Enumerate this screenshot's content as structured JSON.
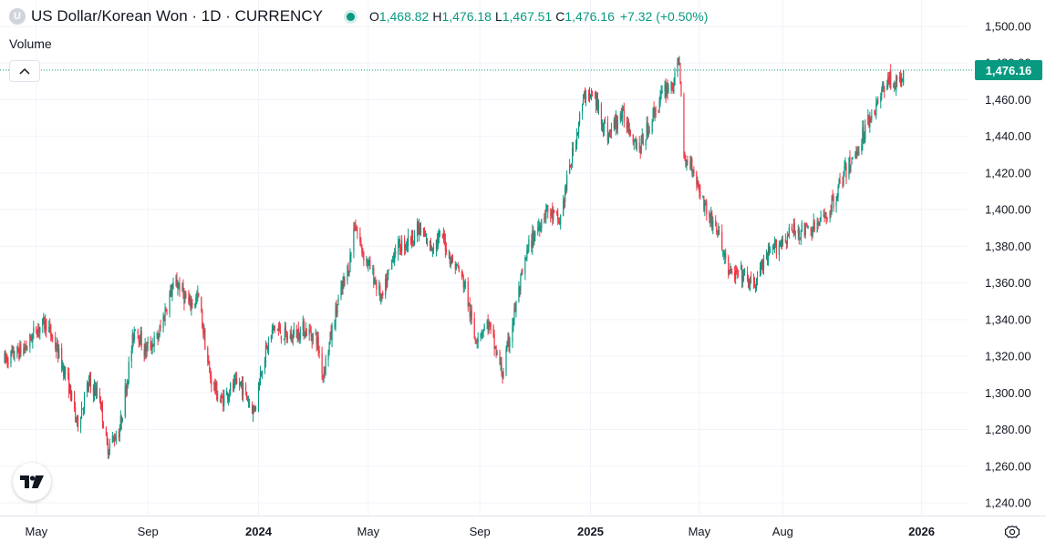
{
  "header": {
    "symbol_badge": "U",
    "title": "US Dollar/Korean Won · 1D · CURRENCY",
    "open_key": "O",
    "open": "1,468.82",
    "high_key": "H",
    "high": "1,476.18",
    "low_key": "L",
    "low": "1,467.51",
    "close_key": "C",
    "close": "1,476.16",
    "change": "+7.32 (+0.50%)"
  },
  "volume_label": "Volume",
  "icons": [
    "collapse-chevron-icon",
    "tradingview-logo-icon",
    "settings-gear-icon"
  ],
  "colors": {
    "up": "#089981",
    "down": "#f23645",
    "grid": "#f0f3fa",
    "axis_text": "#131722",
    "price_tag": "#089981"
  },
  "chart_data": {
    "type": "candlestick",
    "y_axis": {
      "position": "right",
      "min": 1240,
      "max": 1500,
      "step": 20,
      "tick_labels": [
        "1,500.00",
        "1,480.00",
        "1,460.00",
        "1,440.00",
        "1,420.00",
        "1,400.00",
        "1,380.00",
        "1,360.00",
        "1,340.00",
        "1,320.00",
        "1,300.00",
        "1,280.00",
        "1,260.00",
        "1,240.00"
      ]
    },
    "x_axis": {
      "start": "2023-03-27",
      "end": "2025-12-15",
      "ticks": [
        {
          "label": "May",
          "date": "2023-05-01",
          "bold": false
        },
        {
          "label": "Sep",
          "date": "2023-09-01",
          "bold": false
        },
        {
          "label": "2024",
          "date": "2024-01-01",
          "bold": true
        },
        {
          "label": "May",
          "date": "2024-05-01",
          "bold": false
        },
        {
          "label": "Sep",
          "date": "2024-09-01",
          "bold": false
        },
        {
          "label": "2025",
          "date": "2025-01-01",
          "bold": true
        },
        {
          "label": "May",
          "date": "2025-05-01",
          "bold": false
        },
        {
          "label": "Aug",
          "date": "2025-08-01",
          "bold": false
        },
        {
          "label": "2026",
          "date": "2026-01-01",
          "bold": true
        }
      ]
    },
    "last_price": 1476.16,
    "last_price_label": "1,476.16",
    "grid": true,
    "anchors": [
      [
        "2023-03-27",
        1318
      ],
      [
        "2023-04-20",
        1325
      ],
      [
        "2023-05-01",
        1335
      ],
      [
        "2023-05-12",
        1338
      ],
      [
        "2023-05-25",
        1322
      ],
      [
        "2023-06-05",
        1306
      ],
      [
        "2023-06-15",
        1283
      ],
      [
        "2023-06-28",
        1305
      ],
      [
        "2023-07-10",
        1298
      ],
      [
        "2023-07-18",
        1270
      ],
      [
        "2023-08-01",
        1280
      ],
      [
        "2023-08-18",
        1338
      ],
      [
        "2023-08-28",
        1323
      ],
      [
        "2023-09-12",
        1330
      ],
      [
        "2023-09-26",
        1355
      ],
      [
        "2023-10-04",
        1360
      ],
      [
        "2023-10-16",
        1348
      ],
      [
        "2023-10-27",
        1352
      ],
      [
        "2023-11-08",
        1310
      ],
      [
        "2023-11-20",
        1295
      ],
      [
        "2023-12-01",
        1302
      ],
      [
        "2023-12-12",
        1305
      ],
      [
        "2023-12-27",
        1290
      ],
      [
        "2024-01-05",
        1316
      ],
      [
        "2024-01-18",
        1336
      ],
      [
        "2024-02-02",
        1330
      ],
      [
        "2024-02-20",
        1335
      ],
      [
        "2024-03-05",
        1330
      ],
      [
        "2024-03-12",
        1310
      ],
      [
        "2024-03-28",
        1348
      ],
      [
        "2024-04-10",
        1370
      ],
      [
        "2024-04-16",
        1393
      ],
      [
        "2024-04-24",
        1378
      ],
      [
        "2024-05-08",
        1362
      ],
      [
        "2024-05-16",
        1350
      ],
      [
        "2024-05-30",
        1378
      ],
      [
        "2024-06-14",
        1383
      ],
      [
        "2024-06-26",
        1389
      ],
      [
        "2024-07-08",
        1380
      ],
      [
        "2024-07-22",
        1385
      ],
      [
        "2024-08-01",
        1372
      ],
      [
        "2024-08-08",
        1368
      ],
      [
        "2024-08-16",
        1358
      ],
      [
        "2024-08-26",
        1330
      ],
      [
        "2024-09-10",
        1338
      ],
      [
        "2024-09-26",
        1310
      ],
      [
        "2024-10-10",
        1346
      ],
      [
        "2024-10-25",
        1380
      ],
      [
        "2024-11-13",
        1400
      ],
      [
        "2024-11-28",
        1393
      ],
      [
        "2024-12-06",
        1415
      ],
      [
        "2024-12-20",
        1450
      ],
      [
        "2024-12-27",
        1465
      ],
      [
        "2025-01-08",
        1458
      ],
      [
        "2025-01-20",
        1440
      ],
      [
        "2025-02-03",
        1452
      ],
      [
        "2025-02-10",
        1448
      ],
      [
        "2025-02-24",
        1433
      ],
      [
        "2025-03-12",
        1453
      ],
      [
        "2025-03-25",
        1466
      ],
      [
        "2025-04-04",
        1470
      ],
      [
        "2025-04-09",
        1484
      ],
      [
        "2025-04-14",
        1425
      ],
      [
        "2025-04-22",
        1426
      ],
      [
        "2025-05-05",
        1405
      ],
      [
        "2025-05-13",
        1395
      ],
      [
        "2025-05-20",
        1390
      ],
      [
        "2025-06-04",
        1364
      ],
      [
        "2025-06-16",
        1365
      ],
      [
        "2025-06-30",
        1358
      ],
      [
        "2025-07-10",
        1370
      ],
      [
        "2025-07-25",
        1380
      ],
      [
        "2025-08-11",
        1388
      ],
      [
        "2025-09-01",
        1389
      ],
      [
        "2025-09-10",
        1392
      ],
      [
        "2025-09-22",
        1400
      ],
      [
        "2025-10-06",
        1418
      ],
      [
        "2025-10-20",
        1430
      ],
      [
        "2025-11-04",
        1450
      ],
      [
        "2025-11-14",
        1458
      ],
      [
        "2025-11-24",
        1472
      ],
      [
        "2025-12-05",
        1468
      ],
      [
        "2025-12-12",
        1472
      ]
    ]
  }
}
